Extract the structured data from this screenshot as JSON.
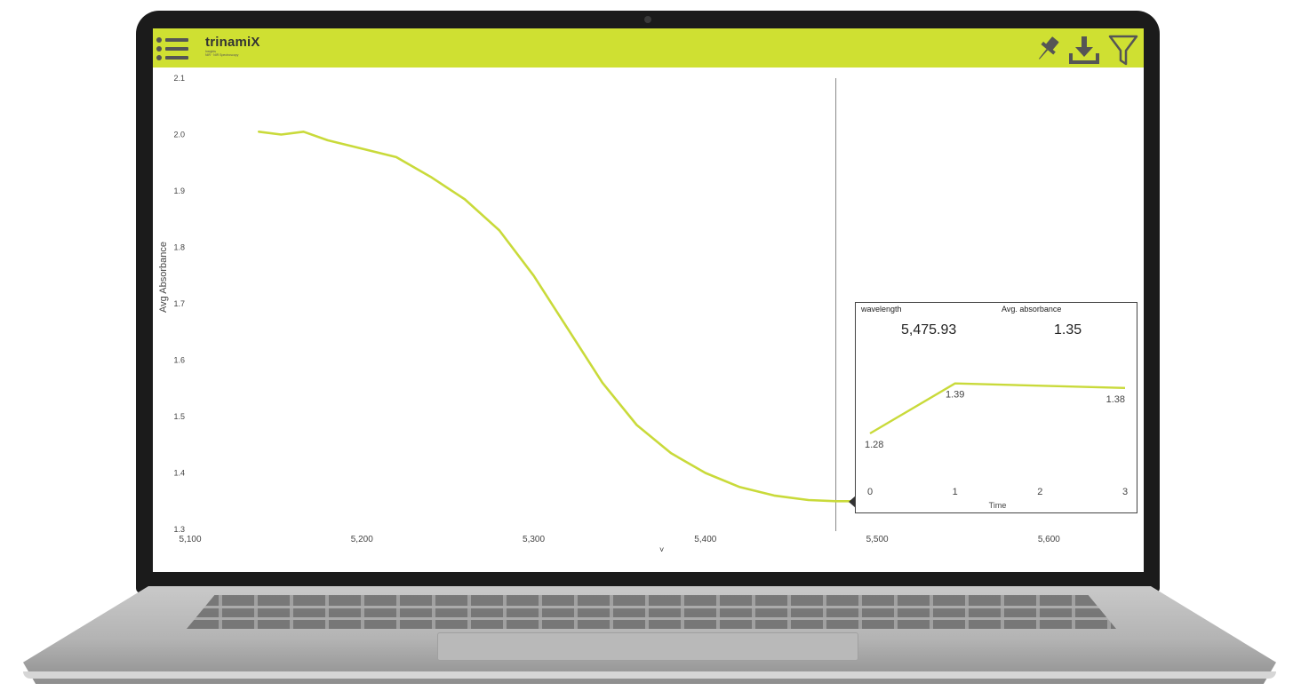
{
  "app": {
    "logo_text": "trinamiX",
    "logo_sub_line1": "Insights",
    "logo_sub_line2": "NIR · NIR Spectroscopy",
    "accent_color": "#cfe032",
    "icons": [
      "menu-icon",
      "pin-icon",
      "download-icon",
      "filter-icon"
    ]
  },
  "chart_data": [
    {
      "type": "line",
      "title": "",
      "xlabel": "",
      "ylabel": "Avg Absorbance",
      "xlim": [
        5100,
        5650
      ],
      "ylim": [
        1.3,
        2.1
      ],
      "x_ticks": [
        5100,
        5200,
        5300,
        5400,
        5500,
        5600
      ],
      "x_tick_labels": [
        "5,100",
        "5,200",
        "5,300",
        "5,400",
        "5,500",
        "5,600"
      ],
      "y_ticks": [
        1.3,
        1.4,
        1.5,
        1.6,
        1.7,
        1.8,
        1.9,
        2.0,
        2.1
      ],
      "y_tick_labels": [
        "1.3",
        "1.4",
        "1.5",
        "1.6",
        "1.7",
        "1.8",
        "1.9",
        "2.0",
        "2.1"
      ],
      "grid": false,
      "line_color": "#c9da3a",
      "hover_x": 5475.93,
      "series": [
        {
          "x": [
            5140,
            5153,
            5166,
            5180,
            5200,
            5220,
            5240,
            5260,
            5280,
            5300,
            5320,
            5340,
            5360,
            5380,
            5400,
            5420,
            5440,
            5460,
            5476,
            5485
          ],
          "y": [
            2.005,
            2.0,
            2.005,
            1.99,
            1.975,
            1.96,
            1.925,
            1.885,
            1.83,
            1.75,
            1.655,
            1.56,
            1.485,
            1.435,
            1.4,
            1.375,
            1.36,
            1.352,
            1.35,
            1.35
          ]
        }
      ]
    },
    {
      "type": "line",
      "title": "",
      "xlabel": "Time",
      "ylabel": "",
      "x": [
        0,
        1,
        3
      ],
      "x_ticks": [
        0,
        1,
        2,
        3
      ],
      "ylim": [
        1.2,
        1.45
      ],
      "show_y_axis": false,
      "data_labels": true,
      "series": [
        {
          "x": [
            0,
            1,
            3
          ],
          "y": [
            1.28,
            1.39,
            1.38
          ],
          "labels": [
            "1.28",
            "1.39",
            "1.38"
          ]
        }
      ]
    }
  ],
  "tooltip": {
    "wavelength_label": "wavelength",
    "wavelength_value": "5,475.93",
    "absorbance_label": "Avg. absorbance",
    "absorbance_value": "1.35"
  }
}
